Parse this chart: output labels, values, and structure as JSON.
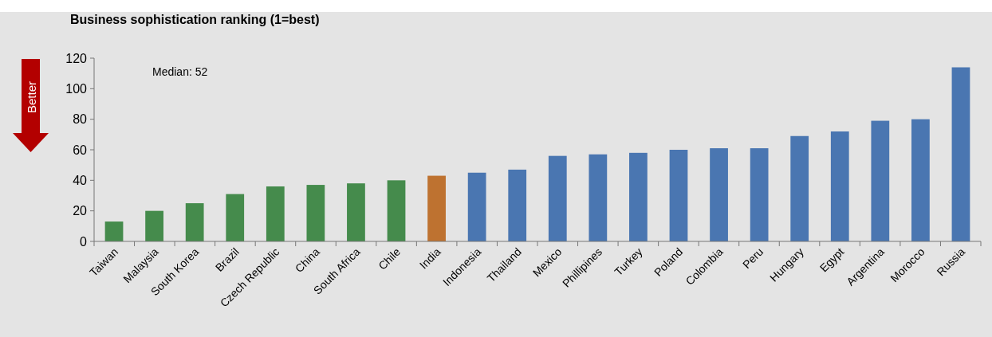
{
  "chart_data": {
    "type": "bar",
    "title": "Business sophistication ranking (1=best)",
    "categories": [
      "Taiwan",
      "Malaysia",
      "South Korea",
      "Brazil",
      "Czech Republic",
      "China",
      "South Africa",
      "Chile",
      "India",
      "Indonesia",
      "Thailand",
      "Mexico",
      "Phillipines",
      "Turkey",
      "Poland",
      "Colombia",
      "Peru",
      "Hungary",
      "Egypt",
      "Argentina",
      "Morocco",
      "Russia"
    ],
    "values": [
      13,
      20,
      25,
      31,
      36,
      37,
      38,
      40,
      43,
      45,
      47,
      56,
      57,
      58,
      60,
      61,
      61,
      69,
      72,
      79,
      80,
      114
    ],
    "colors": [
      "#458b4c",
      "#458b4c",
      "#458b4c",
      "#458b4c",
      "#458b4c",
      "#458b4c",
      "#458b4c",
      "#458b4c",
      "#be7230",
      "#4a76b1",
      "#4a76b1",
      "#4a76b1",
      "#4a76b1",
      "#4a76b1",
      "#4a76b1",
      "#4a76b1",
      "#4a76b1",
      "#4a76b1",
      "#4a76b1",
      "#4a76b1",
      "#4a76b1",
      "#4a76b1"
    ],
    "ylim": [
      0,
      120
    ],
    "yticks": [
      0,
      20,
      40,
      60,
      80,
      100,
      120
    ],
    "annotations": [
      "Median: 52",
      "Better"
    ],
    "grid": false
  }
}
